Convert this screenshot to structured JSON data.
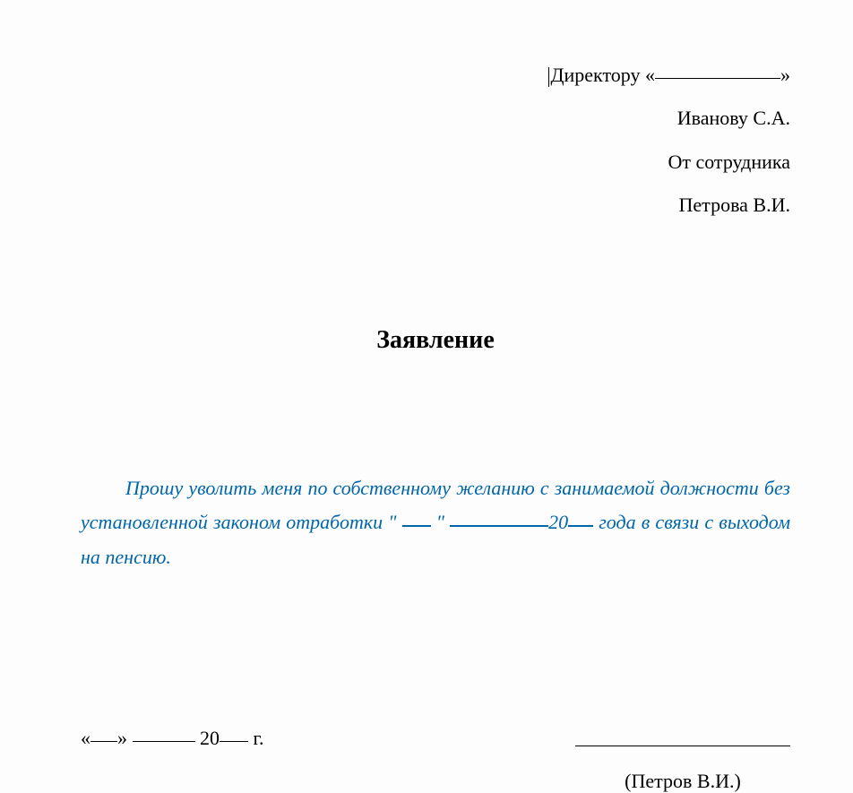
{
  "header": {
    "line1_prefix": "Директору  «",
    "line1_suffix": "»",
    "line2": "Иванову С.А.",
    "line3": "От сотрудника",
    "line4": "Петрова В.И."
  },
  "title": "Заявление",
  "body": {
    "part1": "Прошу  уволить  меня  по  собственному  желанию  с  занимаемой должности без установленной законом отработки \" ",
    "part2": " \" ",
    "part3": "20",
    "part4": " года в связи с выходом на пенсию."
  },
  "footer": {
    "date_open": "«",
    "date_mid": "» ",
    "date_year_prefix": " 20",
    "date_year_suffix": " г.",
    "signer": "(Петров В.И.)"
  },
  "styles": {
    "text_color": "#000000",
    "body_color": "#0066aa",
    "background": "#fdfdfd",
    "header_fontsize": 22,
    "title_fontsize": 28,
    "body_fontsize": 22,
    "footer_fontsize": 22,
    "font_family": "Times New Roman"
  }
}
